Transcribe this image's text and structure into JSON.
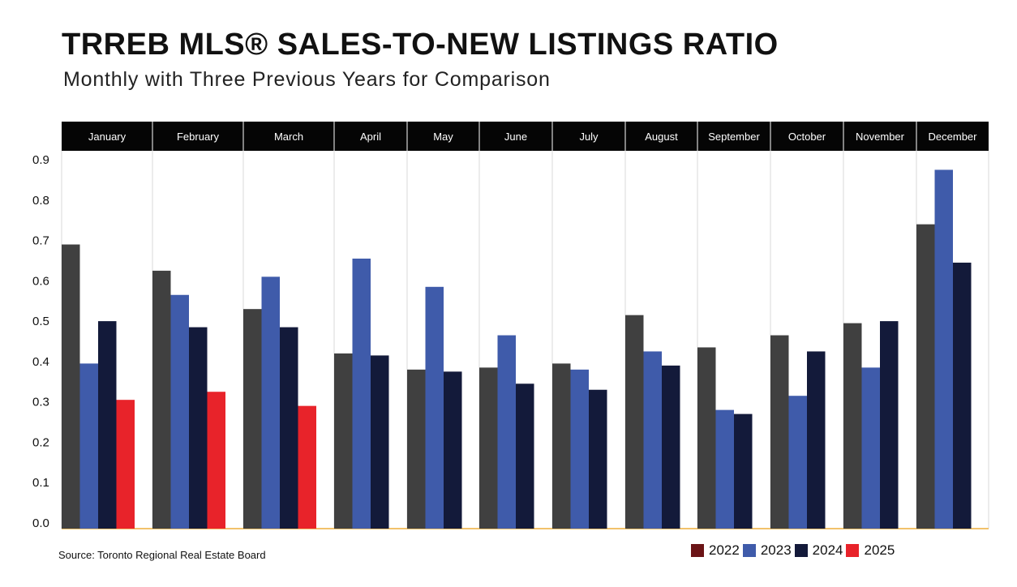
{
  "title": "TRREB MLS® SALES-TO-NEW LISTINGS RATIO",
  "subtitle": "Monthly with Three Previous Years for Comparison",
  "source": "Source: Toronto Regional Real Estate Board",
  "chart_data": {
    "type": "bar",
    "categories": [
      "January",
      "February",
      "March",
      "April",
      "May",
      "June",
      "July",
      "August",
      "September",
      "October",
      "November",
      "December"
    ],
    "ylim": [
      0,
      0.9
    ],
    "yticks": [
      "0.0",
      "0.1",
      "0.2",
      "0.3",
      "0.4",
      "0.5",
      "0.6",
      "0.7",
      "0.8",
      "0.9"
    ],
    "legend_position": "bottom-right",
    "grid": "vertical separators",
    "series": [
      {
        "name": "2022",
        "legend_color": "#6b1416",
        "bar_color": "#404040",
        "values": [
          0.69,
          0.625,
          0.53,
          0.42,
          0.38,
          0.385,
          0.395,
          0.515,
          0.435,
          0.465,
          0.495,
          0.74
        ]
      },
      {
        "name": "2023",
        "legend_color": "#3f5baa",
        "bar_color": "#3f5baa",
        "values": [
          0.395,
          0.565,
          0.61,
          0.655,
          0.585,
          0.465,
          0.38,
          0.425,
          0.28,
          0.315,
          0.385,
          0.875
        ]
      },
      {
        "name": "2024",
        "legend_color": "#131a3a",
        "bar_color": "#131a3a",
        "values": [
          0.5,
          0.485,
          0.485,
          0.415,
          0.375,
          0.345,
          0.33,
          0.39,
          0.27,
          0.425,
          0.5,
          0.645
        ]
      },
      {
        "name": "2025",
        "legend_color": "#e8232a",
        "bar_color": "#e8232a",
        "values": [
          0.305,
          0.325,
          0.29,
          null,
          null,
          null,
          null,
          null,
          null,
          null,
          null,
          null
        ]
      }
    ]
  }
}
